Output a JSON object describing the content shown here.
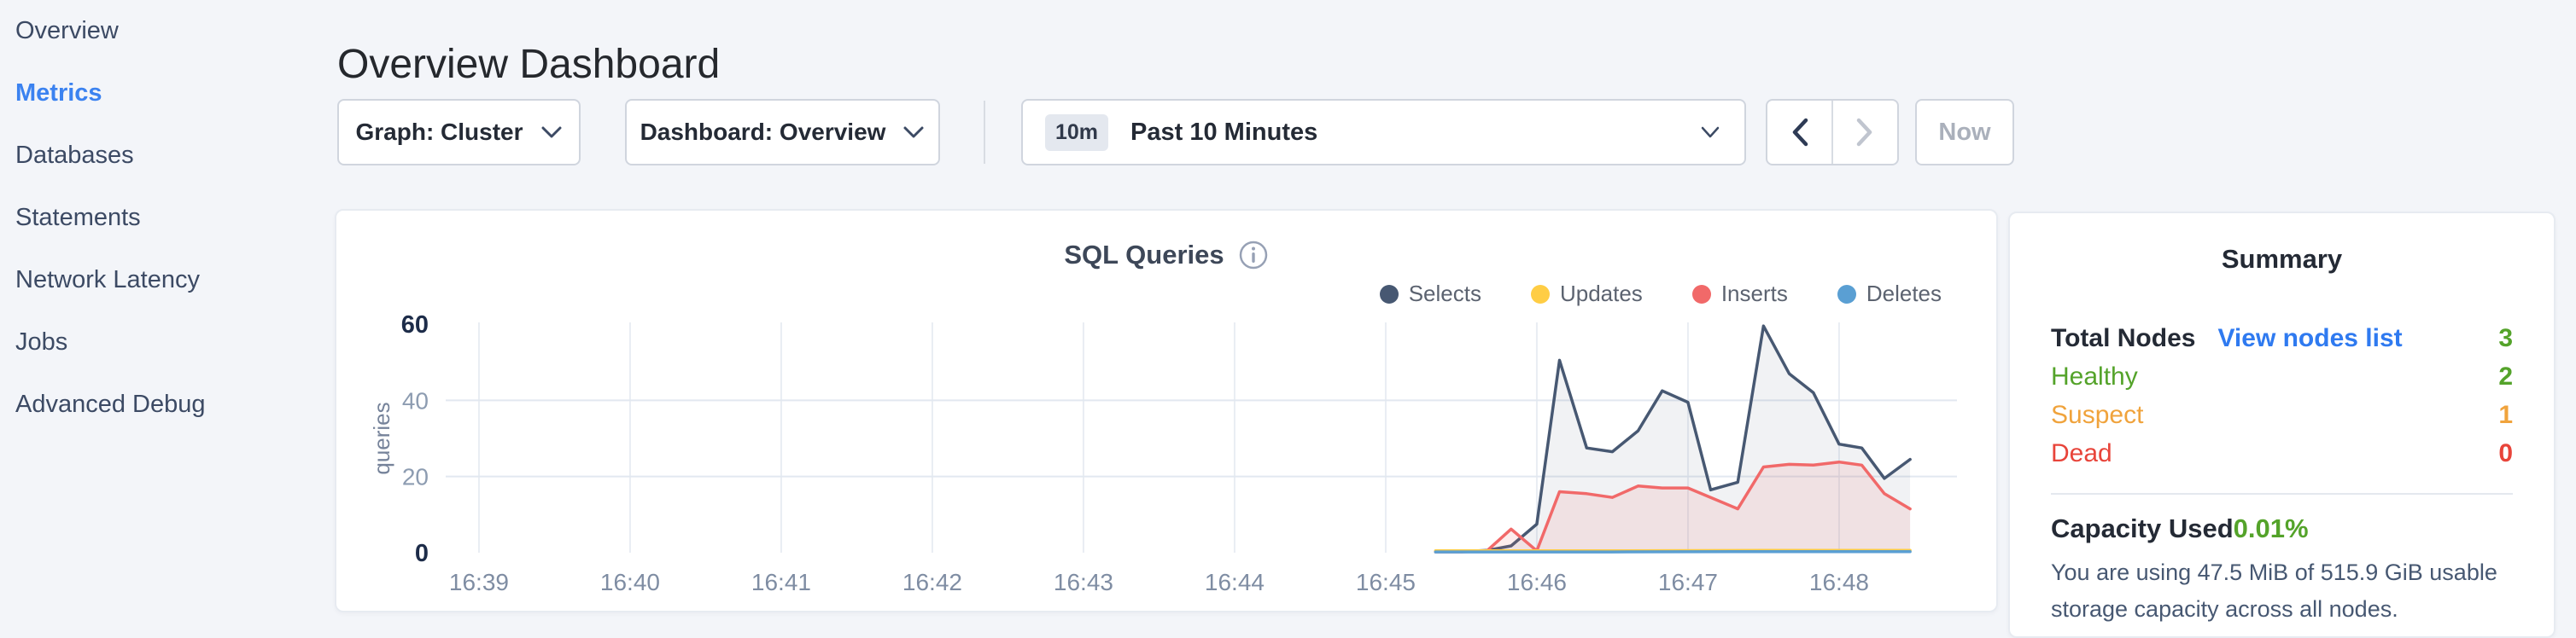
{
  "sidebar": {
    "items": [
      {
        "label": "Overview"
      },
      {
        "label": "Metrics"
      },
      {
        "label": "Databases"
      },
      {
        "label": "Statements"
      },
      {
        "label": "Network Latency"
      },
      {
        "label": "Jobs"
      },
      {
        "label": "Advanced Debug"
      }
    ],
    "active_item": "Metrics"
  },
  "header": {
    "title": "Overview Dashboard"
  },
  "controls": {
    "graph_dropdown": "Graph: Cluster",
    "dashboard_dropdown": "Dashboard: Overview",
    "time_badge": "10m",
    "time_label": "Past 10 Minutes",
    "now_label": "Now"
  },
  "colors": {
    "nav_active": "#3b82f0",
    "link_blue": "#2f7af0",
    "healthy_green": "#54a32a",
    "suspect_orange": "#f0a33c",
    "dead_red": "#e8443a"
  },
  "chart_data": {
    "type": "area",
    "title": "SQL Queries",
    "xlabel": "",
    "ylabel": "queries",
    "ylim": [
      0,
      60
    ],
    "y_ticks": [
      0,
      20,
      40,
      60
    ],
    "y_gridlines": [
      20,
      40
    ],
    "x_domain": [
      38.78,
      48.78
    ],
    "x_unit": "minutes after 16:00",
    "x_ticks": [
      {
        "v": 39,
        "label": "16:39"
      },
      {
        "v": 40,
        "label": "16:40"
      },
      {
        "v": 41,
        "label": "16:41"
      },
      {
        "v": 42,
        "label": "16:42"
      },
      {
        "v": 43,
        "label": "16:43"
      },
      {
        "v": 44,
        "label": "16:44"
      },
      {
        "v": 45,
        "label": "16:45"
      },
      {
        "v": 46,
        "label": "16:46"
      },
      {
        "v": 47,
        "label": "16:47"
      },
      {
        "v": 48,
        "label": "16:48"
      }
    ],
    "legend_position": "top-right",
    "series": [
      {
        "name": "Selects",
        "color": "#475872",
        "fill": "rgba(71,88,114,0.08)",
        "points": [
          [
            45.33,
            0.3
          ],
          [
            45.5,
            0.3
          ],
          [
            45.67,
            0.6
          ],
          [
            45.83,
            1.8
          ],
          [
            46.0,
            7.5
          ],
          [
            46.15,
            50.5
          ],
          [
            46.33,
            27.5
          ],
          [
            46.5,
            26.5
          ],
          [
            46.67,
            32
          ],
          [
            46.83,
            42.5
          ],
          [
            47.0,
            39.5
          ],
          [
            47.15,
            16.5
          ],
          [
            47.33,
            18.5
          ],
          [
            47.5,
            59.5
          ],
          [
            47.67,
            47
          ],
          [
            47.83,
            42
          ],
          [
            48.0,
            28.5
          ],
          [
            48.15,
            27.5
          ],
          [
            48.3,
            19.5
          ],
          [
            48.47,
            24.5
          ]
        ]
      },
      {
        "name": "Updates",
        "color": "#ffcd44",
        "fill": "rgba(255,205,68,0.12)",
        "points": [
          [
            45.33,
            0.5
          ],
          [
            46.5,
            0.5
          ],
          [
            47.5,
            0.6
          ],
          [
            48.47,
            0.6
          ]
        ]
      },
      {
        "name": "Inserts",
        "color": "#f16969",
        "fill": "rgba(241,105,105,0.12)",
        "points": [
          [
            45.33,
            0.2
          ],
          [
            45.5,
            0.2
          ],
          [
            45.67,
            0.5
          ],
          [
            45.83,
            6.2
          ],
          [
            46.0,
            0.5
          ],
          [
            46.15,
            16
          ],
          [
            46.33,
            15.5
          ],
          [
            46.5,
            14.5
          ],
          [
            46.67,
            17.5
          ],
          [
            46.83,
            17
          ],
          [
            47.0,
            17
          ],
          [
            47.15,
            14.5
          ],
          [
            47.33,
            11.5
          ],
          [
            47.5,
            22.5
          ],
          [
            47.67,
            23.2
          ],
          [
            47.83,
            23
          ],
          [
            48.0,
            23.8
          ],
          [
            48.15,
            23
          ],
          [
            48.3,
            15.5
          ],
          [
            48.47,
            11.5
          ]
        ]
      },
      {
        "name": "Deletes",
        "color": "#5a9fd3",
        "fill": "rgba(90,159,211,0.1)",
        "points": [
          [
            45.33,
            0.2
          ],
          [
            46.5,
            0.2
          ],
          [
            47.5,
            0.3
          ],
          [
            48.47,
            0.3
          ]
        ]
      }
    ],
    "draw_order": [
      0,
      2,
      1,
      3
    ]
  },
  "summary": {
    "title": "Summary",
    "total_nodes_label": "Total Nodes",
    "view_nodes_link": "View nodes list",
    "total_nodes_value": "3",
    "rows": [
      {
        "label": "Healthy",
        "value": "2",
        "color": "#54a32a"
      },
      {
        "label": "Suspect",
        "value": "1",
        "color": "#f0a33c"
      },
      {
        "label": "Dead",
        "value": "0",
        "color": "#e8443a"
      }
    ],
    "capacity_label": "Capacity Used",
    "capacity_value": "0.01%",
    "capacity_note": "You are using 47.5 MiB of 515.9 GiB usable storage capacity across all nodes."
  }
}
